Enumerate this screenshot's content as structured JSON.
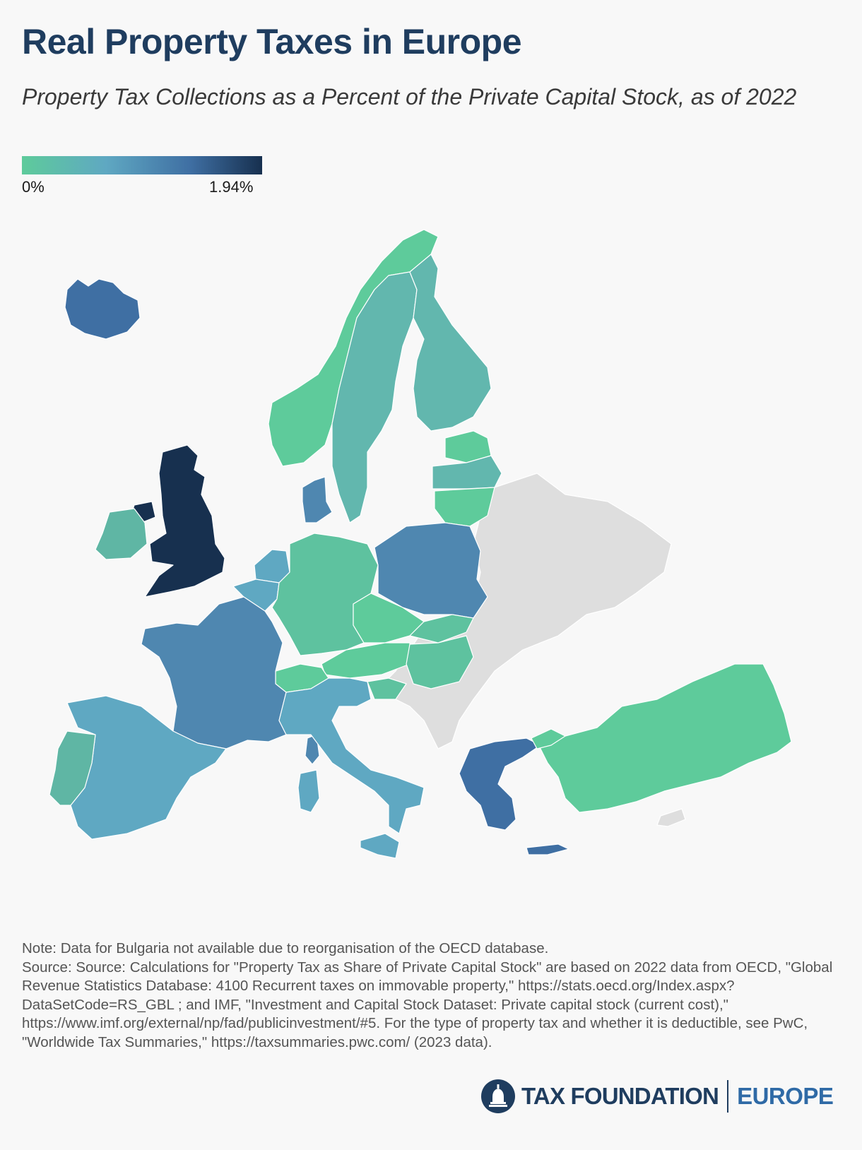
{
  "header": {
    "title": "Real Property Taxes in Europe",
    "subtitle": "Property Tax Collections as a Percent of the Private Capital Stock, as of 2022"
  },
  "legend": {
    "min_label": "0%",
    "max_label": "1.94%",
    "colors": [
      "#5ecb9b",
      "#5fa8c2",
      "#3f6fa3",
      "#17304f"
    ],
    "no_data_color": "#dedede"
  },
  "footer": {
    "note": "Note: Data for Bulgaria not available due to reorganisation of the OECD database.",
    "source": "Source: Source: Calculations for \"Property Tax as Share of Private Capital Stock\" are based on 2022 data from OECD, \"Global Revenue Statistics Database: 4100 Recurrent taxes on immovable property,\" https://stats.oecd.org/Index.aspx?DataSetCode=RS_GBL ; and IMF, \"Investment and Capital Stock Dataset: Private capital stock (current cost),\" https://www.imf.org/external/np/fad/publicinvestment/#5. For the type of property tax and whether it is deductible, see PwC, \"Worldwide Tax Summaries,\" https://taxsummaries.pwc.com/ (2023 data)."
  },
  "brand": {
    "name": "TAX FOUNDATION",
    "sub": "EUROPE",
    "logo_icon": "capitol-dome-icon"
  }
}
